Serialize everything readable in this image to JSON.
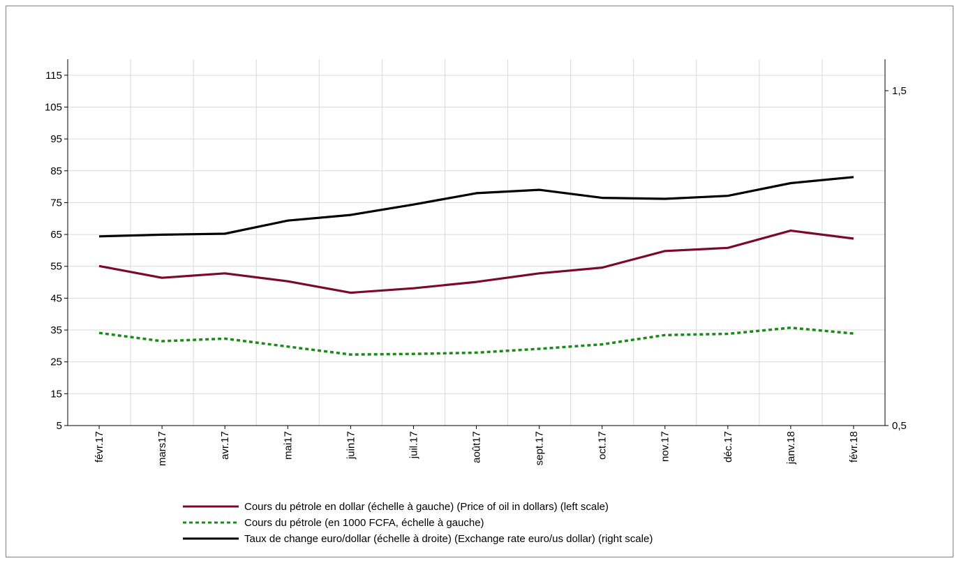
{
  "chart_data": {
    "type": "line",
    "categories": [
      "févr.17",
      "mars17",
      "avr.17",
      "mai17",
      "juin17",
      "juil.17",
      "août17",
      "sept.17",
      "oct.17",
      "nov.17",
      "déc.17",
      "janv.18",
      "févr.18"
    ],
    "left_axis": {
      "min": 5,
      "max": 120,
      "ticks": [
        5,
        15,
        25,
        35,
        45,
        55,
        65,
        75,
        85,
        95,
        105,
        115
      ],
      "tick_labels": [
        "5",
        "15",
        "25",
        "35",
        "45",
        "55",
        "65",
        "75",
        "85",
        "95",
        "105",
        "115"
      ]
    },
    "right_axis": {
      "min": 0.5,
      "max": 1.5,
      "ticks": [
        0.5,
        1.5
      ],
      "tick_labels": [
        "0,5",
        "1,5"
      ]
    },
    "grid": true,
    "legend_position": "bottom",
    "series": [
      {
        "name": "Cours du pétrole en dollar (échelle à gauche) (Price of oil in dollars) (left scale)",
        "axis": "left",
        "color": "#7b0a2a",
        "dash": "solid",
        "values": [
          55.1,
          51.4,
          52.8,
          50.3,
          46.7,
          48.1,
          50.1,
          52.8,
          54.6,
          59.8,
          60.8,
          66.2,
          63.7
        ]
      },
      {
        "name": "Cours du pétrole (en 1000 FCFA, échelle à gauche)",
        "axis": "left",
        "color": "#1a8a1a",
        "dash": "dotted",
        "values": [
          34.1,
          31.5,
          32.3,
          29.8,
          27.3,
          27.5,
          27.9,
          29.1,
          30.5,
          33.4,
          33.8,
          35.7,
          33.9
        ]
      },
      {
        "name": "Taux de change euro/dollar (échelle à droite) (Exchange rate euro/us dollar) (right scale)",
        "axis": "right",
        "color": "#000000",
        "dash": "solid",
        "values": [
          1.065,
          1.07,
          1.073,
          1.112,
          1.129,
          1.16,
          1.194,
          1.204,
          1.18,
          1.177,
          1.186,
          1.224,
          1.242
        ]
      }
    ]
  }
}
